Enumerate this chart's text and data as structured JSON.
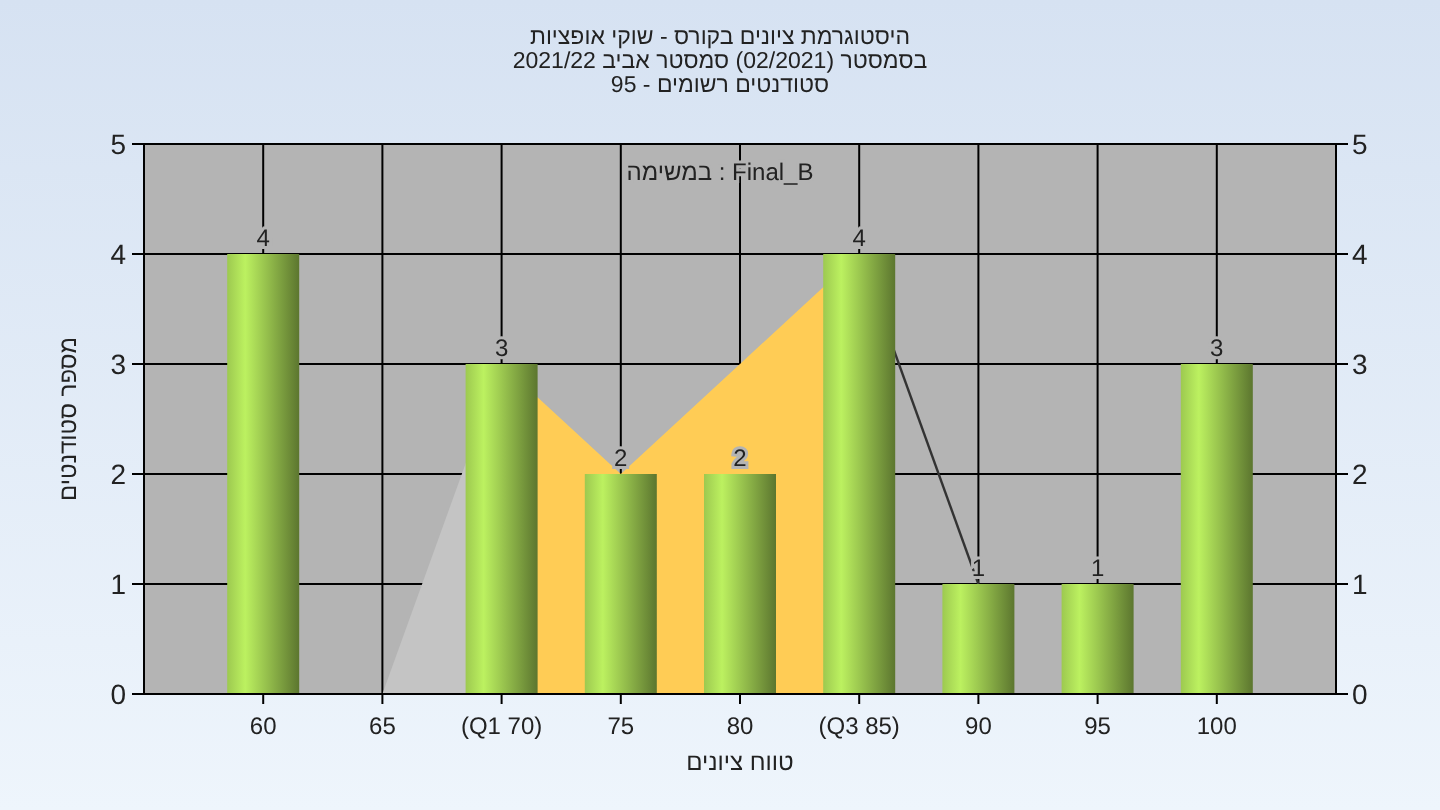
{
  "chart_data": {
    "type": "bar",
    "title": "היסטוגרמת ציונים בקורס - שוקי אופציות",
    "subtitle": "בסמסטר  (02/2021)  סמסטר אביב 2021/22\nסטודנטים רשומים - 95",
    "xlabel": "טווח ציונים",
    "ylabel": "מספר סטודנטים",
    "annotations": [
      "Final_B : במשימה"
    ],
    "categories": [
      "60",
      "65",
      "(Q1 70)",
      "75",
      "80",
      "(Q3 85)",
      "90",
      "95",
      "100"
    ],
    "series": [
      {
        "type": "area",
        "color": "#c4c4c4",
        "values": [
          null,
          0,
          3,
          null,
          null,
          null,
          null,
          null,
          null
        ]
      },
      {
        "type": "area",
        "color": "#ffcc55",
        "values": [
          null,
          null,
          3,
          2,
          3,
          4,
          null,
          null,
          null
        ]
      },
      {
        "type": "line",
        "color": "#333333",
        "values": [
          null,
          null,
          null,
          null,
          null,
          4,
          1,
          null,
          null
        ]
      },
      {
        "color": "#8db548",
        "values": [
          4,
          0,
          3,
          2,
          2,
          4,
          1,
          1,
          3
        ],
        "value_labels": [
          "4",
          null,
          "3",
          "2",
          "2",
          "4",
          "1",
          "1",
          "3"
        ]
      }
    ],
    "ylim": [
      0,
      5
    ],
    "yticks": [
      0,
      1,
      2,
      3,
      4,
      5
    ],
    "y2lim": [
      0,
      5
    ],
    "y2ticks": [
      0,
      1,
      2,
      3,
      4,
      5
    ],
    "grid": true
  }
}
